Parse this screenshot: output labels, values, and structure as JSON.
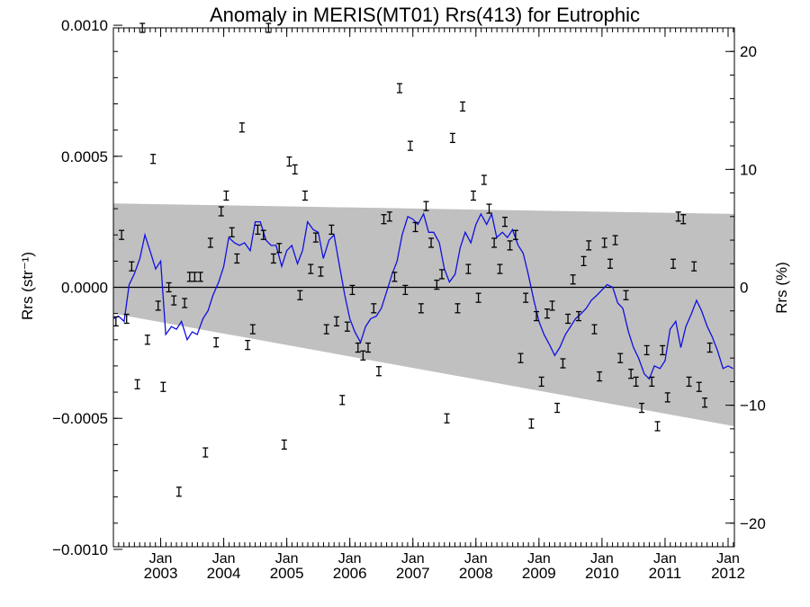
{
  "chart_data": {
    "type": "scatter",
    "title": "Anomaly in MERIS(MT01) Rrs(413) for Eutrophic",
    "ylabel_left": "Rrs (str⁻¹)",
    "ylabel_right": "Rrs (%)",
    "xlim": [
      2002.25,
      2012.1
    ],
    "ylim_left": [
      -0.00099,
      0.00099
    ],
    "ylim_right": [
      -22,
      22
    ],
    "y_ticks_left": [
      "0.0010",
      "0.0005",
      "0.0000",
      "−0.0005",
      "−0.0010"
    ],
    "y_tick_values_left": [
      0.001,
      0.0005,
      0.0,
      -0.0005,
      -0.001
    ],
    "y_ticks_right": [
      "20",
      "10",
      "0",
      "−10",
      "−20"
    ],
    "y_tick_values_right": [
      20,
      10,
      0,
      -10,
      -20
    ],
    "x_ticks": [
      {
        "month": "Jan",
        "year": "2003",
        "x": 2003.0
      },
      {
        "month": "Jan",
        "year": "2004",
        "x": 2004.0
      },
      {
        "month": "Jan",
        "year": "2005",
        "x": 2005.0
      },
      {
        "month": "Jan",
        "year": "2006",
        "x": 2006.0
      },
      {
        "month": "Jan",
        "year": "2007",
        "x": 2007.0
      },
      {
        "month": "Jan",
        "year": "2008",
        "x": 2008.0
      },
      {
        "month": "Jan",
        "year": "2009",
        "x": 2009.0
      },
      {
        "month": "Jan",
        "year": "2010",
        "x": 2010.0
      },
      {
        "month": "Jan",
        "year": "2011",
        "x": 2011.0
      },
      {
        "month": "Jan",
        "year": "2012",
        "x": 2012.0
      }
    ],
    "band": {
      "color": "#c0c0c0",
      "upper": [
        [
          2002.25,
          0.00032
        ],
        [
          2012.1,
          0.00028
        ]
      ],
      "lower": [
        [
          2002.25,
          -0.0001
        ],
        [
          2012.1,
          -0.00053
        ]
      ]
    },
    "zero_line": 0,
    "points": [
      [
        2002.29,
        -0.00013
      ],
      [
        2002.38,
        0.0002
      ],
      [
        2002.46,
        -0.00012
      ],
      [
        2002.54,
        8e-05
      ],
      [
        2002.63,
        -0.00037
      ],
      [
        2002.71,
        0.00099
      ],
      [
        2002.79,
        -0.0002
      ],
      [
        2002.88,
        0.00049
      ],
      [
        2002.96,
        -7e-05
      ],
      [
        2003.04,
        -0.00038
      ],
      [
        2003.13,
        0.0
      ],
      [
        2003.21,
        -5e-05
      ],
      [
        2003.29,
        -0.00078
      ],
      [
        2003.38,
        -6e-05
      ],
      [
        2003.46,
        4e-05
      ],
      [
        2003.54,
        4e-05
      ],
      [
        2003.63,
        4e-05
      ],
      [
        2003.71,
        -0.00063
      ],
      [
        2003.79,
        0.00017
      ],
      [
        2003.88,
        -0.00021
      ],
      [
        2003.96,
        0.00029
      ],
      [
        2004.04,
        0.00035
      ],
      [
        2004.13,
        0.00021
      ],
      [
        2004.21,
        0.00011
      ],
      [
        2004.29,
        0.00061
      ],
      [
        2004.38,
        -0.00022
      ],
      [
        2004.46,
        -0.00016
      ],
      [
        2004.54,
        0.00022
      ],
      [
        2004.63,
        0.0002
      ],
      [
        2004.71,
        0.00099
      ],
      [
        2004.79,
        0.00011
      ],
      [
        2004.88,
        0.00015
      ],
      [
        2004.96,
        -0.0006
      ],
      [
        2005.04,
        0.00048
      ],
      [
        2005.13,
        0.00045
      ],
      [
        2005.21,
        -3e-05
      ],
      [
        2005.29,
        0.00035
      ],
      [
        2005.38,
        7e-05
      ],
      [
        2005.46,
        0.00019
      ],
      [
        2005.54,
        6e-05
      ],
      [
        2005.63,
        -0.00016
      ],
      [
        2005.71,
        0.00022
      ],
      [
        2005.79,
        -0.00013
      ],
      [
        2005.88,
        -0.00043
      ],
      [
        2005.96,
        -0.00015
      ],
      [
        2006.04,
        -1e-05
      ],
      [
        2006.13,
        -0.00023
      ],
      [
        2006.21,
        -0.00026
      ],
      [
        2006.29,
        -0.00023
      ],
      [
        2006.38,
        -8e-05
      ],
      [
        2006.46,
        -0.00032
      ],
      [
        2006.54,
        0.00026
      ],
      [
        2006.63,
        0.00027
      ],
      [
        2006.71,
        4e-05
      ],
      [
        2006.79,
        0.00076
      ],
      [
        2006.88,
        -1e-05
      ],
      [
        2006.96,
        0.00054
      ],
      [
        2007.04,
        0.00023
      ],
      [
        2007.13,
        -8e-05
      ],
      [
        2007.21,
        0.00031
      ],
      [
        2007.29,
        0.00017
      ],
      [
        2007.38,
        1e-05
      ],
      [
        2007.46,
        5e-05
      ],
      [
        2007.54,
        -0.0005
      ],
      [
        2007.63,
        0.00057
      ],
      [
        2007.71,
        -8e-05
      ],
      [
        2007.79,
        0.00069
      ],
      [
        2007.88,
        7e-05
      ],
      [
        2007.96,
        0.00035
      ],
      [
        2008.04,
        -4e-05
      ],
      [
        2008.13,
        0.00041
      ],
      [
        2008.21,
        0.0003
      ],
      [
        2008.29,
        0.00017
      ],
      [
        2008.38,
        7e-05
      ],
      [
        2008.46,
        0.00025
      ],
      [
        2008.54,
        0.00016
      ],
      [
        2008.63,
        0.0002
      ],
      [
        2008.71,
        -0.00027
      ],
      [
        2008.79,
        -4e-05
      ],
      [
        2008.88,
        -0.00052
      ],
      [
        2008.96,
        -0.00011
      ],
      [
        2009.04,
        -0.00036
      ],
      [
        2009.13,
        -0.0001
      ],
      [
        2009.21,
        -7e-05
      ],
      [
        2009.29,
        -0.00046
      ],
      [
        2009.38,
        -0.00029
      ],
      [
        2009.46,
        -0.00012
      ],
      [
        2009.54,
        3e-05
      ],
      [
        2009.63,
        -0.00011
      ],
      [
        2009.71,
        0.0001
      ],
      [
        2009.79,
        0.00016
      ],
      [
        2009.88,
        -0.00016
      ],
      [
        2009.96,
        -0.00034
      ],
      [
        2010.04,
        0.00017
      ],
      [
        2010.13,
        9e-05
      ],
      [
        2010.21,
        0.00018
      ],
      [
        2010.29,
        -0.00027
      ],
      [
        2010.38,
        -3e-05
      ],
      [
        2010.46,
        -0.00033
      ],
      [
        2010.54,
        -0.00036
      ],
      [
        2010.63,
        -0.00046
      ],
      [
        2010.71,
        -0.00024
      ],
      [
        2010.79,
        -0.00036
      ],
      [
        2010.88,
        -0.00053
      ],
      [
        2010.96,
        -0.00024
      ],
      [
        2011.04,
        -0.00042
      ],
      [
        2011.13,
        9e-05
      ],
      [
        2011.21,
        0.00027
      ],
      [
        2011.29,
        0.00026
      ],
      [
        2011.38,
        -0.00036
      ],
      [
        2011.46,
        8e-05
      ],
      [
        2011.54,
        -0.00038
      ],
      [
        2011.63,
        -0.00044
      ],
      [
        2011.71,
        -0.00023
      ]
    ],
    "line_color": "#1010e0",
    "line": [
      [
        2002.25,
        -0.00012
      ],
      [
        2002.33,
        -0.00011
      ],
      [
        2002.42,
        -0.00013
      ],
      [
        2002.5,
        1e-05
      ],
      [
        2002.58,
        5e-05
      ],
      [
        2002.67,
        0.00011
      ],
      [
        2002.75,
        0.0002
      ],
      [
        2002.83,
        0.00014
      ],
      [
        2002.92,
        7e-05
      ],
      [
        2003.0,
        0.0001
      ],
      [
        2003.08,
        -0.00018
      ],
      [
        2003.17,
        -0.00015
      ],
      [
        2003.25,
        -0.00016
      ],
      [
        2003.33,
        -0.00013
      ],
      [
        2003.42,
        -0.0002
      ],
      [
        2003.5,
        -0.00017
      ],
      [
        2003.58,
        -0.00018
      ],
      [
        2003.67,
        -0.00012
      ],
      [
        2003.75,
        -9e-05
      ],
      [
        2003.83,
        -3e-05
      ],
      [
        2003.92,
        2e-05
      ],
      [
        2004.0,
        8e-05
      ],
      [
        2004.08,
        0.00019
      ],
      [
        2004.17,
        0.00017
      ],
      [
        2004.25,
        0.00016
      ],
      [
        2004.33,
        0.00017
      ],
      [
        2004.42,
        0.00014
      ],
      [
        2004.5,
        0.00025
      ],
      [
        2004.58,
        0.00025
      ],
      [
        2004.67,
        0.00018
      ],
      [
        2004.75,
        0.00016
      ],
      [
        2004.83,
        0.00016
      ],
      [
        2004.92,
        8e-05
      ],
      [
        2005.0,
        0.00014
      ],
      [
        2005.08,
        0.00016
      ],
      [
        2005.17,
        9e-05
      ],
      [
        2005.25,
        0.00014
      ],
      [
        2005.33,
        0.00025
      ],
      [
        2005.42,
        0.00022
      ],
      [
        2005.5,
        0.00021
      ],
      [
        2005.58,
        0.00011
      ],
      [
        2005.67,
        0.00018
      ],
      [
        2005.75,
        0.0002
      ],
      [
        2005.83,
        9e-05
      ],
      [
        2005.92,
        -3e-05
      ],
      [
        2006.0,
        -0.00012
      ],
      [
        2006.08,
        -0.00017
      ],
      [
        2006.17,
        -0.00021
      ],
      [
        2006.25,
        -0.00015
      ],
      [
        2006.33,
        -0.00012
      ],
      [
        2006.42,
        -0.00011
      ],
      [
        2006.5,
        -8e-05
      ],
      [
        2006.58,
        -2e-05
      ],
      [
        2006.67,
        5e-05
      ],
      [
        2006.75,
        0.0001
      ],
      [
        2006.83,
        0.0002
      ],
      [
        2006.92,
        0.00027
      ],
      [
        2007.0,
        0.00026
      ],
      [
        2007.08,
        0.00024
      ],
      [
        2007.17,
        0.00028
      ],
      [
        2007.25,
        0.00021
      ],
      [
        2007.33,
        0.00021
      ],
      [
        2007.42,
        0.00017
      ],
      [
        2007.5,
        7e-05
      ],
      [
        2007.58,
        2e-05
      ],
      [
        2007.67,
        5e-05
      ],
      [
        2007.75,
        0.00015
      ],
      [
        2007.83,
        0.00021
      ],
      [
        2007.92,
        0.00017
      ],
      [
        2008.0,
        0.00024
      ],
      [
        2008.08,
        0.00028
      ],
      [
        2008.17,
        0.00024
      ],
      [
        2008.25,
        0.00028
      ],
      [
        2008.33,
        0.00019
      ],
      [
        2008.42,
        0.00021
      ],
      [
        2008.5,
        0.00019
      ],
      [
        2008.58,
        0.00022
      ],
      [
        2008.67,
        0.00016
      ],
      [
        2008.75,
        0.00013
      ],
      [
        2008.83,
        5e-05
      ],
      [
        2008.92,
        -5e-05
      ],
      [
        2009.0,
        -0.00013
      ],
      [
        2009.08,
        -0.00018
      ],
      [
        2009.17,
        -0.00022
      ],
      [
        2009.25,
        -0.00026
      ],
      [
        2009.33,
        -0.00023
      ],
      [
        2009.42,
        -0.00018
      ],
      [
        2009.5,
        -0.00015
      ],
      [
        2009.58,
        -0.00012
      ],
      [
        2009.67,
        -0.0001
      ],
      [
        2009.75,
        -8e-05
      ],
      [
        2009.83,
        -5e-05
      ],
      [
        2009.92,
        -3e-05
      ],
      [
        2010.0,
        -1e-05
      ],
      [
        2010.08,
        1e-05
      ],
      [
        2010.17,
        0.0
      ],
      [
        2010.25,
        -6e-05
      ],
      [
        2010.33,
        -8e-05
      ],
      [
        2010.42,
        -0.00017
      ],
      [
        2010.5,
        -0.00023
      ],
      [
        2010.58,
        -0.00027
      ],
      [
        2010.67,
        -0.00033
      ],
      [
        2010.75,
        -0.00035
      ],
      [
        2010.83,
        -0.0003
      ],
      [
        2010.92,
        -0.00031
      ],
      [
        2011.0,
        -0.00028
      ],
      [
        2011.08,
        -0.00016
      ],
      [
        2011.17,
        -0.00013
      ],
      [
        2011.25,
        -0.00023
      ],
      [
        2011.33,
        -0.00015
      ],
      [
        2011.42,
        -0.0001
      ],
      [
        2011.5,
        -5e-05
      ],
      [
        2011.58,
        -9e-05
      ],
      [
        2011.67,
        -0.00015
      ],
      [
        2011.75,
        -0.00019
      ],
      [
        2011.83,
        -0.00024
      ],
      [
        2011.92,
        -0.00031
      ],
      [
        2012.0,
        -0.0003
      ],
      [
        2012.08,
        -0.00031
      ]
    ]
  }
}
